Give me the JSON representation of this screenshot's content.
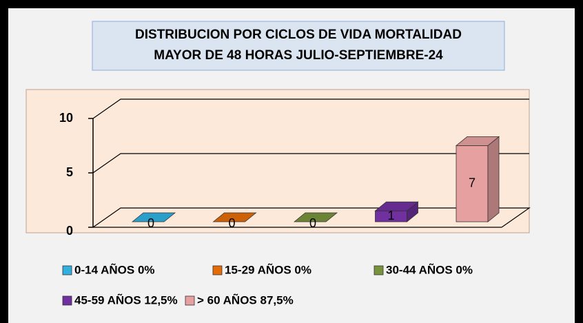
{
  "chart_data": {
    "type": "bar3d",
    "title": [
      "DISTRIBUCION POR CICLOS DE VIDA MORTALIDAD",
      "MAYOR DE 48 HORAS JULIO-SEPTIEMBRE-24"
    ],
    "categories": [
      "0-14 AÑOS 0%",
      "15-29 AÑOS 0%",
      "30-44 AÑOS 0%",
      "45-59 AÑOS 12,5%",
      "> 60 AÑOS 87,5%"
    ],
    "values": [
      0,
      0,
      0,
      1,
      7
    ],
    "colors": [
      "#31b0e0",
      "#e36c09",
      "#77933c",
      "#7030a0",
      "#e6a0a0"
    ],
    "ylim": [
      0,
      10
    ],
    "yticks": [
      0,
      5,
      10
    ],
    "grid": true,
    "legend": "bottom"
  }
}
